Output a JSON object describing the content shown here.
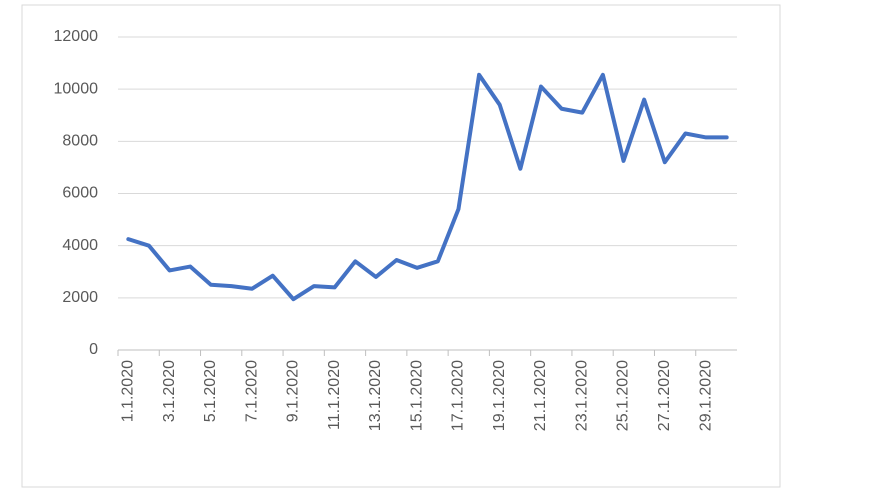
{
  "chart_data": {
    "type": "line",
    "categories": [
      "1.1.2020",
      null,
      "3.1.2020",
      null,
      "5.1.2020",
      null,
      "7.1.2020",
      null,
      "9.1.2020",
      null,
      "11.1.2020",
      null,
      "13.1.2020",
      null,
      "15.1.2020",
      null,
      "17.1.2020",
      null,
      "19.1.2020",
      null,
      "21.1.2020",
      null,
      "23.1.2020",
      null,
      "25.1.2020",
      null,
      "27.1.2020",
      null,
      "29.1.2020",
      null
    ],
    "series": [
      {
        "color": "#4472c4",
        "values": [
          4250,
          4000,
          3050,
          3200,
          2500,
          2450,
          2350,
          2850,
          1950,
          2450,
          2400,
          3400,
          2800,
          3450,
          3150,
          3400,
          5400,
          10550,
          9400,
          6950,
          10100,
          9250,
          9100,
          10550,
          7250,
          9600,
          7200,
          8300,
          8150,
          8150
        ]
      }
    ],
    "ylim": [
      0,
      12000
    ],
    "yticks": [
      0,
      2000,
      4000,
      6000,
      8000,
      10000,
      12000
    ],
    "grid": true
  }
}
